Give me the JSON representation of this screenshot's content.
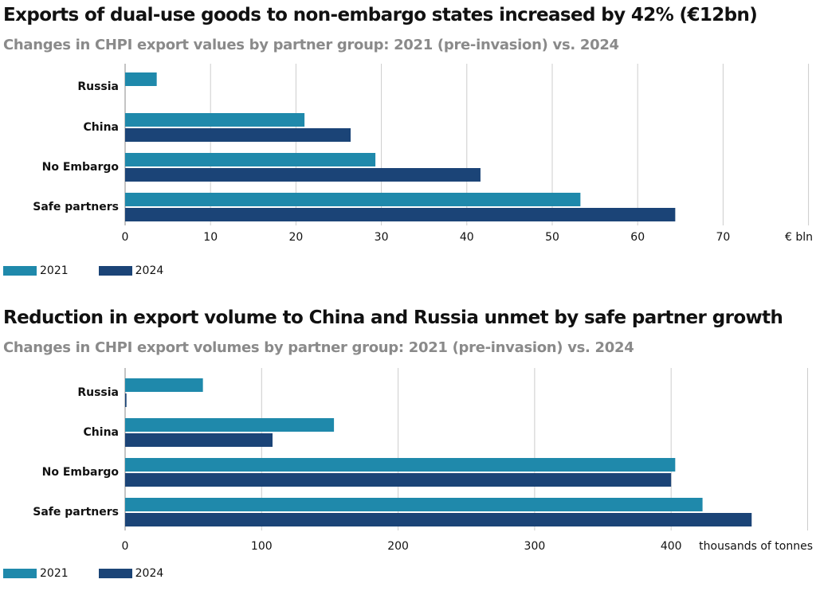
{
  "colors": {
    "c2021": "#1f89ab",
    "c2024": "#1b4477",
    "grid": "#cccccc",
    "axis": "#888888"
  },
  "chart_data": [
    {
      "type": "bar",
      "orientation": "horizontal",
      "title": "Exports of dual-use goods to non-embargo states increased by 42% (€12bn)",
      "subtitle": "Changes in CHPI export values by partner group: 2021 (pre-invasion) vs. 2024",
      "categories": [
        "Russia",
        "China",
        "No Embargo",
        "Safe partners"
      ],
      "series": [
        {
          "name": "2021",
          "color": "#1f89ab",
          "values": [
            3.7,
            21.0,
            29.3,
            53.3
          ]
        },
        {
          "name": "2024",
          "color": "#1b4477",
          "values": [
            0.0,
            26.4,
            41.6,
            64.4
          ]
        }
      ],
      "xticks": [
        0,
        10,
        20,
        30,
        40,
        50,
        60,
        70
      ],
      "xlim": [
        0,
        80
      ],
      "unit": "€ bln",
      "grid": true,
      "legend": "bottom-left"
    },
    {
      "type": "bar",
      "orientation": "horizontal",
      "title": "Reduction in export volume to China and Russia unmet by safe partner growth",
      "subtitle": "Changes in CHPI export volumes by partner group: 2021 (pre-invasion) vs. 2024",
      "categories": [
        "Russia",
        "China",
        "No Embargo",
        "Safe partners"
      ],
      "series": [
        {
          "name": "2021",
          "color": "#1f89ab",
          "values": [
            57,
            153,
            403,
            423
          ]
        },
        {
          "name": "2024",
          "color": "#1b4477",
          "values": [
            1,
            108,
            400,
            459
          ]
        }
      ],
      "xticks": [
        0,
        100,
        200,
        300,
        400
      ],
      "xlim": [
        0,
        500
      ],
      "unit": "thousands of tonnes",
      "grid": true,
      "legend": "bottom-left"
    }
  ]
}
